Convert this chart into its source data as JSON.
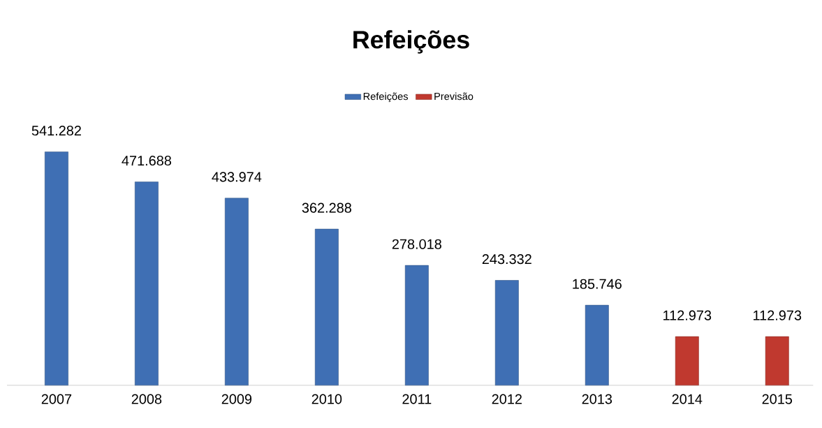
{
  "chart_data": {
    "type": "bar",
    "title": "Refeições",
    "categories": [
      "2007",
      "2008",
      "2009",
      "2010",
      "2011",
      "2012",
      "2013",
      "2014",
      "2015"
    ],
    "series": [
      {
        "name": "Refeições",
        "color": "#3f6fb4",
        "values": [
          541282,
          471688,
          433974,
          362288,
          278018,
          243332,
          185746,
          null,
          null
        ],
        "value_labels": [
          "541.282",
          "471.688",
          "433.974",
          "362.288",
          "278.018",
          "243.332",
          "185.746",
          null,
          null
        ]
      },
      {
        "name": "Previsão",
        "color": "#c0392f",
        "values": [
          null,
          null,
          null,
          null,
          null,
          null,
          null,
          112973,
          112973
        ],
        "value_labels": [
          null,
          null,
          null,
          null,
          null,
          null,
          null,
          "112.973",
          "112.973"
        ]
      }
    ],
    "legend": "top"
  }
}
